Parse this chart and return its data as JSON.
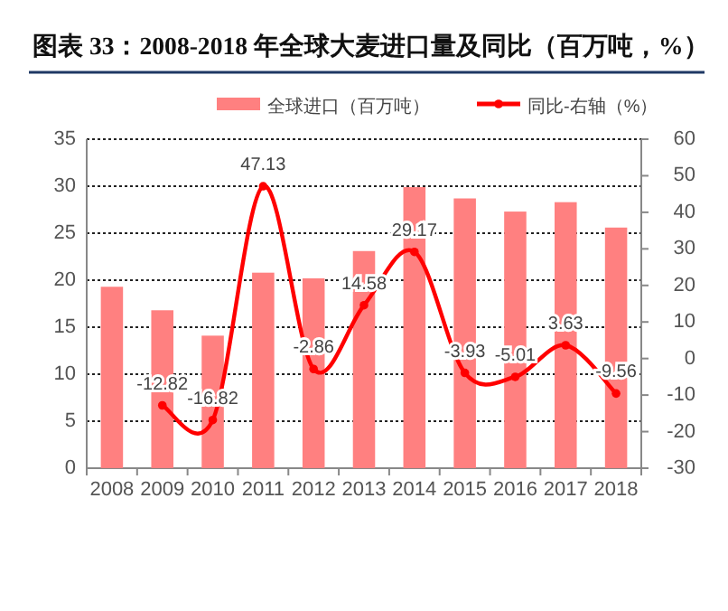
{
  "chart_data": {
    "type": "bar",
    "title": "图表 33：2008-2018 年全球大麦进口量及同比（百万吨，%）",
    "categories": [
      "2008",
      "2009",
      "2010",
      "2011",
      "2012",
      "2013",
      "2014",
      "2015",
      "2016",
      "2017",
      "2018"
    ],
    "series": [
      {
        "name": "全球进口（百万吨）",
        "type": "bar",
        "color": "#ff8080",
        "values": [
          19.3,
          16.8,
          14.1,
          20.8,
          20.2,
          23.1,
          29.9,
          28.7,
          27.3,
          28.3,
          25.6
        ]
      },
      {
        "name": "同比-右轴（%）",
        "type": "line",
        "axis": "y2",
        "color": "#ff0000",
        "marker": "circle",
        "values": [
          null,
          -12.82,
          -16.82,
          47.13,
          -2.86,
          14.58,
          29.17,
          -3.93,
          -5.01,
          3.63,
          -9.56
        ],
        "value_labels": [
          null,
          "-12.82",
          "-16.82",
          "47.13",
          "-2.86",
          "14.58",
          "29.17",
          "-3.93",
          "-5.01",
          "3.63",
          "-9.56"
        ]
      }
    ],
    "ylim": [
      0,
      35
    ],
    "yticks": [
      0,
      5,
      10,
      15,
      20,
      25,
      30,
      35
    ],
    "y2lim": [
      -30,
      60
    ],
    "y2ticks": [
      -30,
      -20,
      -10,
      0,
      10,
      20,
      30,
      40,
      50,
      60
    ],
    "grid": "y",
    "legend": "top"
  }
}
